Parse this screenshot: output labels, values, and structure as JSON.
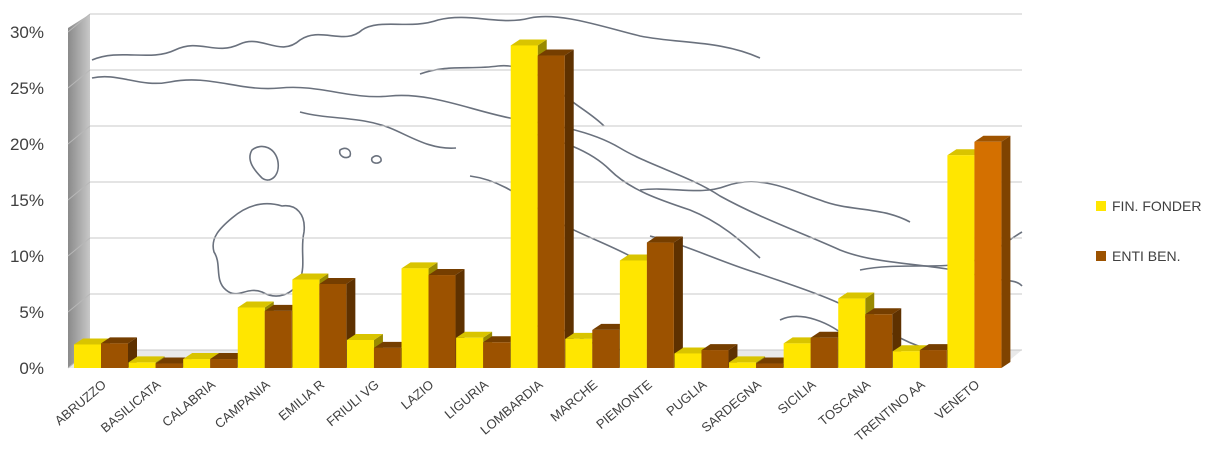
{
  "chart_data": {
    "type": "bar",
    "categories": [
      "ABRUZZO",
      "BASILICATA",
      "CALABRIA",
      "CAMPANIA",
      "EMILIA R",
      "FRIULI VG",
      "LAZIO",
      "LIGURIA",
      "LOMBARDIA",
      "MARCHE",
      "PIEMONTE",
      "PUGLIA",
      "SARDEGNA",
      "SICILIA",
      "TOSCANA",
      "TRENTINO AA",
      "VENETO"
    ],
    "series": [
      {
        "name": "FIN. FONDER",
        "color": "#FFE600",
        "values": [
          2.1,
          0.5,
          0.8,
          5.4,
          7.9,
          2.5,
          8.9,
          2.7,
          28.8,
          2.6,
          9.6,
          1.3,
          0.5,
          2.2,
          6.2,
          1.5,
          19.0
        ]
      },
      {
        "name": "ENTI BEN.",
        "color": "#9C5200",
        "values": [
          2.2,
          0.4,
          0.8,
          5.1,
          7.5,
          1.8,
          8.3,
          2.3,
          27.9,
          3.4,
          11.2,
          1.6,
          0.4,
          2.7,
          4.8,
          1.6,
          20.2
        ]
      }
    ],
    "highlight_color": "#D47000",
    "ylim": [
      0,
      30
    ],
    "yticks": [
      0,
      5,
      10,
      15,
      20,
      25,
      30
    ],
    "ytick_labels": [
      "0%",
      "5%",
      "10%",
      "15%",
      "20%",
      "25%",
      "30%"
    ],
    "grid": true,
    "legend_position": "right",
    "background": "map-of-italy"
  }
}
